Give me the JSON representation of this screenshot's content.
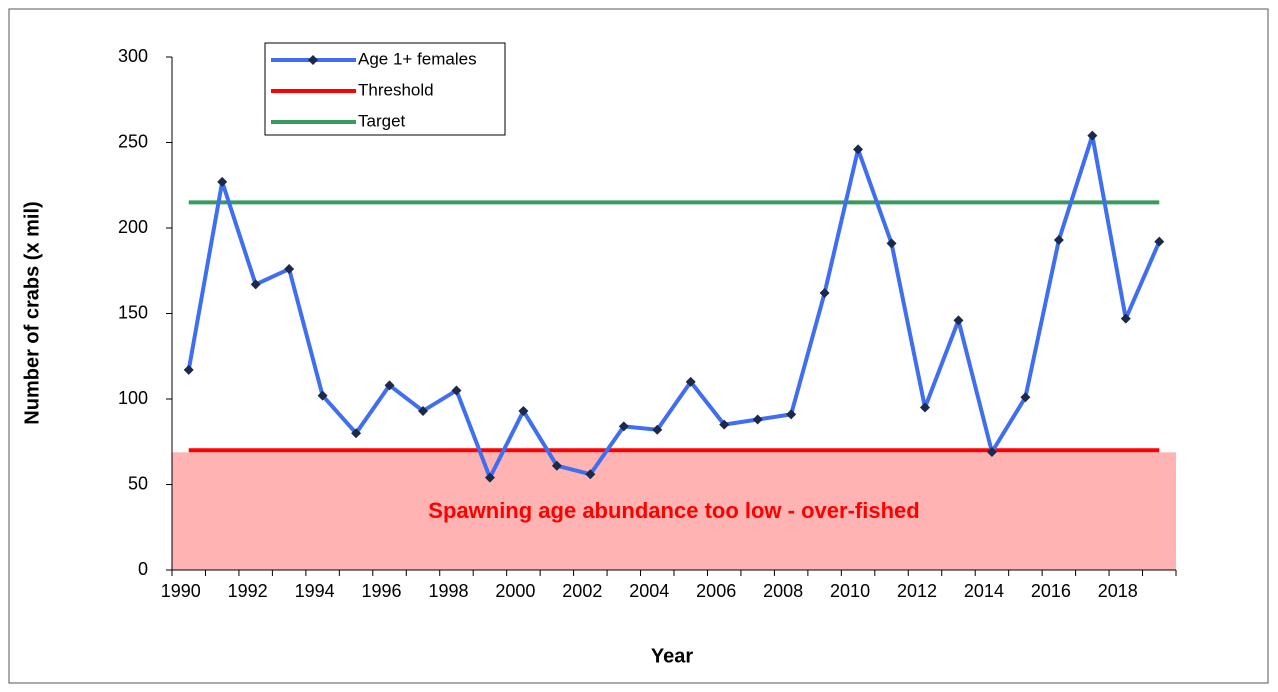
{
  "chart_data": {
    "type": "line",
    "x_label": "Year",
    "y_label": "Number of crabs (x mil)",
    "annotation": "Spawning age abundance too low - over-fished",
    "categories": [
      "1990",
      null,
      "1992",
      null,
      "1994",
      null,
      "1996",
      null,
      "1998",
      null,
      "2000",
      null,
      "2002",
      null,
      "2004",
      null,
      "2006",
      null,
      "2008",
      null,
      "2010",
      null,
      "2012",
      null,
      "2014",
      null,
      "2016",
      null,
      "2018",
      null
    ],
    "series": [
      {
        "name": "Age 1+ females",
        "color": "#3f6ef0",
        "marker": "diamond",
        "values": [
          117,
          227,
          167,
          176,
          102,
          80,
          108,
          93,
          105,
          54,
          93,
          61,
          56,
          84,
          82,
          110,
          85,
          88,
          91,
          162,
          246,
          191,
          95,
          146,
          69,
          101,
          193,
          254,
          147,
          192
        ]
      },
      {
        "name": "Threshold",
        "color": "#ff0000",
        "values": [
          70,
          70,
          70,
          70,
          70,
          70,
          70,
          70,
          70,
          70,
          70,
          70,
          70,
          70,
          70,
          70,
          70,
          70,
          70,
          70,
          70,
          70,
          70,
          70,
          70,
          70,
          70,
          70,
          70,
          70
        ]
      },
      {
        "name": "Target",
        "color": "#3a9a5c",
        "values": [
          215,
          215,
          215,
          215,
          215,
          215,
          215,
          215,
          215,
          215,
          215,
          215,
          215,
          215,
          215,
          215,
          215,
          215,
          215,
          215,
          215,
          215,
          215,
          215,
          215,
          215,
          215,
          215,
          215,
          215
        ]
      }
    ],
    "ylim": [
      0,
      300
    ],
    "yticks": [
      0,
      50,
      100,
      150,
      200,
      250,
      300
    ],
    "legend": "upper left"
  }
}
